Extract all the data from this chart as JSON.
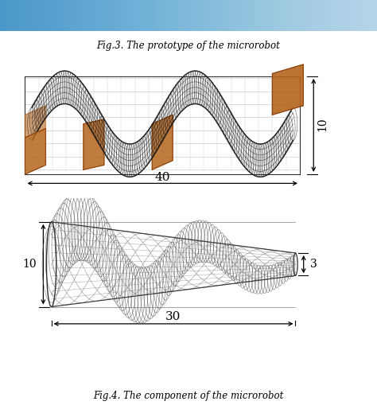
{
  "fig_width": 4.74,
  "fig_height": 5.19,
  "dpi": 100,
  "bg_color": "#ffffff",
  "top_bar_color_solid": "#4a5aaa",
  "caption1": "Fig.3. The prototype of the microrobot",
  "caption2": "Fig.4. The component of the microrobot",
  "caption_fontsize": 8.5,
  "dim1_horizontal": "40",
  "dim1_vertical": "10",
  "dim2_horizontal": "30",
  "dim2_vertical_left": "10",
  "dim2_vertical_right": "3",
  "spiral_color": "#1a1a1a",
  "copper_color": "#b5651d",
  "copper_dark": "#8B4513",
  "wireframe_color": "#555555",
  "annotation_fontsize": 10,
  "grid_color": "#cccccc"
}
